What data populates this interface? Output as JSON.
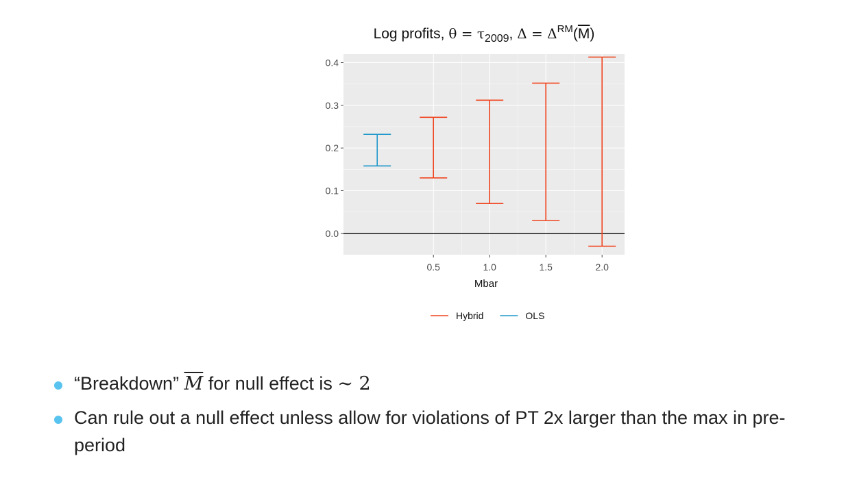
{
  "slide": {
    "title": {
      "prefix": "Log profits, ",
      "theta": "θ",
      "eq": " = ",
      "tau": "τ",
      "tau_sub": "2009",
      "comma": ", ",
      "delta": "Δ",
      "delta_sup": "RM",
      "mbar": "M"
    },
    "bullets": [
      {
        "before": "“Breakdown” ",
        "math": "M",
        "after": " for null effect is ",
        "math2": "∼ 2"
      },
      {
        "text": "Can rule out a null effect unless allow for violations of PT 2x larger than the max in pre-period"
      }
    ]
  },
  "chart_data": {
    "type": "errorbar",
    "xlabel": "Mbar",
    "ylabel": "",
    "xlim": [
      -0.3,
      2.2
    ],
    "ylim": [
      -0.05,
      0.42
    ],
    "x_ticks": [
      0.5,
      1.0,
      1.5,
      2.0
    ],
    "x_tick_labels": [
      "0.5",
      "1.0",
      "1.5",
      "2.0"
    ],
    "y_ticks": [
      0.0,
      0.1,
      0.2,
      0.3,
      0.4
    ],
    "y_tick_labels": [
      "0.0",
      "0.1",
      "0.2",
      "0.3",
      "0.4"
    ],
    "hline": 0.0,
    "grid": true,
    "legend_position": "bottom",
    "colors": {
      "Hybrid": "#f0441f",
      "OLS": "#1f98c9",
      "panel": "#ebebeb",
      "grid": "#fafafa",
      "hline": "#000000"
    },
    "series": [
      {
        "name": "Hybrid",
        "points": [
          {
            "x": 0.5,
            "lower": 0.13,
            "upper": 0.272
          },
          {
            "x": 1.0,
            "lower": 0.07,
            "upper": 0.312
          },
          {
            "x": 1.5,
            "lower": 0.03,
            "upper": 0.352
          },
          {
            "x": 2.0,
            "lower": -0.03,
            "upper": 0.413
          }
        ]
      },
      {
        "name": "OLS",
        "points": [
          {
            "x": 0.0,
            "lower": 0.158,
            "upper": 0.232
          }
        ]
      }
    ]
  }
}
